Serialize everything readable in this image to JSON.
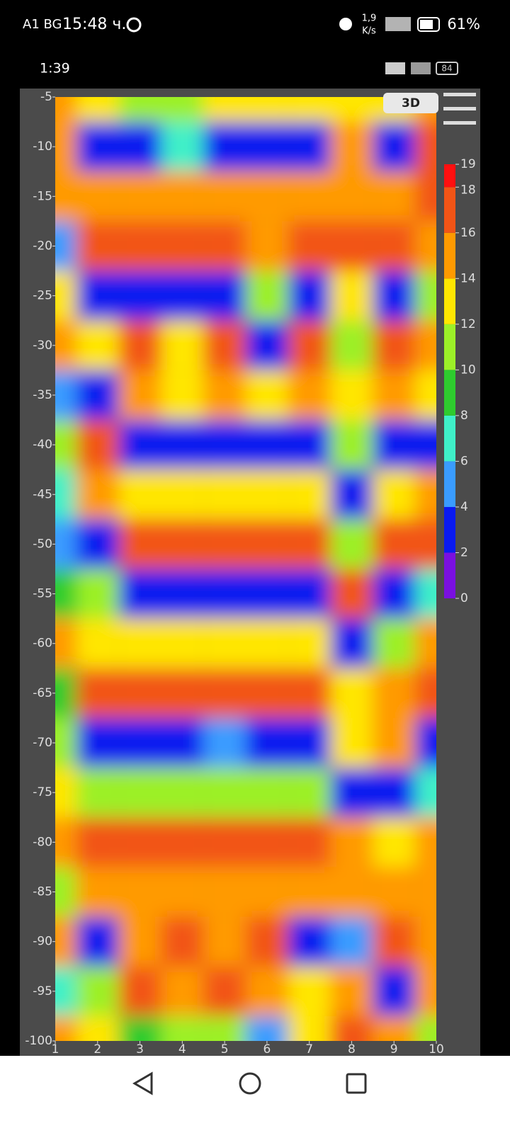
{
  "status_bar": {
    "carrier": "A1 BG",
    "time": "15:48 ч.",
    "speed": "1,9",
    "speed_unit": "K/s",
    "battery": "61%"
  },
  "app_status": {
    "time": "1:39",
    "battery": "84"
  },
  "button": "3D",
  "chart_data": {
    "type": "contour",
    "x": [
      1,
      2,
      3,
      4,
      5,
      6,
      7,
      8,
      9,
      10
    ],
    "y": [
      -5,
      -10,
      -15,
      -20,
      -25,
      -30,
      -35,
      -40,
      -45,
      -50,
      -55,
      -60,
      -65,
      -70,
      -75,
      -80,
      -85,
      -90,
      -95,
      -100
    ],
    "z": [
      [
        14,
        12,
        10,
        10,
        12,
        12,
        12,
        12,
        12,
        14
      ],
      [
        14,
        2,
        2,
        6,
        2,
        2,
        2,
        14,
        2,
        16
      ],
      [
        14,
        14,
        14,
        14,
        14,
        14,
        14,
        14,
        14,
        16
      ],
      [
        4,
        16,
        16,
        16,
        16,
        15,
        17,
        16,
        16,
        15
      ],
      [
        12,
        2,
        2,
        2,
        2,
        10,
        2,
        12,
        2,
        10
      ],
      [
        14,
        12,
        16,
        12,
        16,
        2,
        16,
        10,
        16,
        14
      ],
      [
        4,
        2,
        14,
        12,
        14,
        12,
        14,
        12,
        14,
        12
      ],
      [
        10,
        16,
        2,
        2,
        2,
        2,
        2,
        10,
        2,
        2
      ],
      [
        6,
        15,
        12,
        12,
        12,
        12,
        12,
        2,
        12,
        14
      ],
      [
        4,
        2,
        16,
        16,
        16,
        16,
        16,
        10,
        16,
        16
      ],
      [
        8,
        10,
        2,
        2,
        2,
        2,
        2,
        16,
        2,
        6
      ],
      [
        14,
        12,
        12,
        12,
        12,
        12,
        12,
        2,
        10,
        14
      ],
      [
        8,
        16,
        16,
        16,
        16,
        16,
        16,
        12,
        14,
        16
      ],
      [
        10,
        2,
        2,
        2,
        4,
        2,
        2,
        12,
        14,
        2
      ],
      [
        12,
        10,
        10,
        10,
        10,
        10,
        10,
        2,
        2,
        6
      ],
      [
        14,
        16,
        16,
        16,
        16,
        16,
        16,
        14,
        12,
        14
      ],
      [
        10,
        14,
        14,
        14,
        14,
        14,
        14,
        14,
        14,
        14
      ],
      [
        14,
        2,
        14,
        16,
        14,
        16,
        2,
        4,
        16,
        14
      ],
      [
        6,
        10,
        16,
        15,
        16,
        14,
        12,
        14,
        2,
        14
      ],
      [
        14,
        12,
        8,
        10,
        10,
        4,
        12,
        16,
        14,
        10
      ]
    ],
    "xlim": [
      1,
      10
    ],
    "ylim": [
      -100,
      -5
    ],
    "xticks": [
      1,
      2,
      3,
      4,
      5,
      6,
      7,
      8,
      9,
      10
    ],
    "yticks": [
      -5,
      -10,
      -15,
      -20,
      -25,
      -30,
      -35,
      -40,
      -45,
      -50,
      -55,
      -60,
      -65,
      -70,
      -75,
      -80,
      -85,
      -90,
      -95,
      -100
    ],
    "levels": [
      0,
      2,
      4,
      6,
      8,
      10,
      12,
      14,
      16,
      18,
      19
    ],
    "colors": [
      "#7a10e0",
      "#0a1af0",
      "#3a9cff",
      "#3ff0c8",
      "#2ecc2e",
      "#9cf028",
      "#ffe600",
      "#ff9a00",
      "#f25416",
      "#ff1010"
    ]
  }
}
